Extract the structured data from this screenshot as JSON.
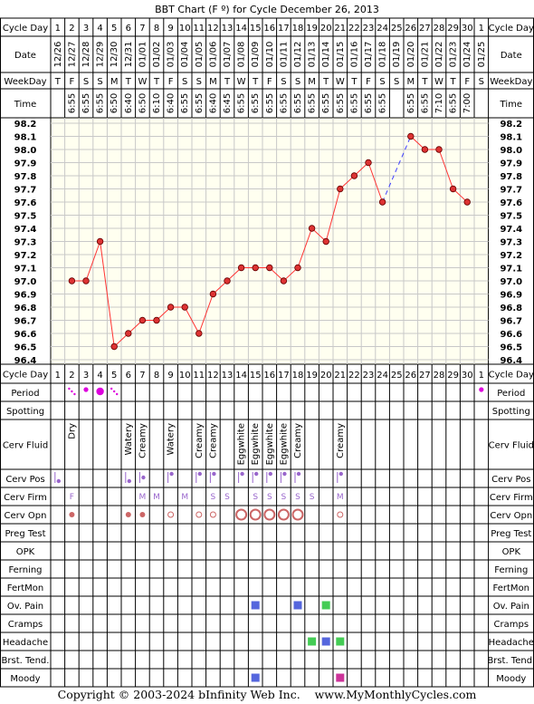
{
  "chart_data": {
    "type": "line",
    "title": "BBT Chart (F º) for Cycle December 26, 2013",
    "row_labels": {
      "cycle_day": "Cycle Day",
      "date": "Date",
      "weekday": "WeekDay",
      "time": "Time",
      "period": "Period",
      "spotting": "Spotting",
      "cerv_fluid": "Cerv Fluid",
      "cerv_pos": "Cerv Pos",
      "cerv_firm": "Cerv Firm",
      "cerv_opn": "Cerv Opn",
      "preg_test": "Preg Test",
      "opk": "OPK",
      "ferning": "Ferning",
      "fertmon": "FertMon",
      "ov_pain": "Ov. Pain",
      "cramps": "Cramps",
      "headache": "Headache",
      "brst_tend": "Brst. Tend.",
      "moody": "Moody"
    },
    "cycle_days": [
      "1",
      "2",
      "3",
      "4",
      "5",
      "6",
      "7",
      "8",
      "9",
      "10",
      "11",
      "12",
      "13",
      "14",
      "15",
      "16",
      "17",
      "18",
      "19",
      "20",
      "21",
      "22",
      "23",
      "24",
      "25",
      "26",
      "27",
      "28",
      "29",
      "30",
      "1"
    ],
    "dates": [
      "12/26",
      "12/27",
      "12/28",
      "12/29",
      "12/30",
      "12/31",
      "01/01",
      "01/02",
      "01/03",
      "01/04",
      "01/05",
      "01/06",
      "01/07",
      "01/08",
      "01/09",
      "01/10",
      "01/11",
      "01/12",
      "01/13",
      "01/14",
      "01/15",
      "01/16",
      "01/17",
      "01/18",
      "01/19",
      "01/20",
      "01/21",
      "01/22",
      "01/23",
      "01/24",
      "01/25"
    ],
    "weekdays": [
      "T",
      "F",
      "S",
      "S",
      "M",
      "T",
      "W",
      "T",
      "F",
      "S",
      "S",
      "M",
      "T",
      "W",
      "T",
      "F",
      "S",
      "S",
      "M",
      "T",
      "W",
      "T",
      "F",
      "S",
      "S",
      "M",
      "T",
      "W",
      "T",
      "F",
      "S"
    ],
    "times": [
      "",
      "6:55",
      "6:55",
      "6:55",
      "6:50",
      "6:40",
      "6:50",
      "6:10",
      "6:40",
      "6:55",
      "6:55",
      "6:40",
      "6:45",
      "6:55",
      "6:55",
      "6:55",
      "6:55",
      "6:55",
      "6:55",
      "6:55",
      "6:55",
      "6:55",
      "6:55",
      "6:55",
      "",
      "6:55",
      "6:55",
      "7:10",
      "6:55",
      "7:00",
      ""
    ],
    "y_ticks": [
      "98.2",
      "98.1",
      "98.0",
      "97.9",
      "97.8",
      "97.7",
      "97.6",
      "97.5",
      "97.4",
      "97.3",
      "97.2",
      "97.1",
      "97.0",
      "96.9",
      "96.8",
      "96.7",
      "96.6",
      "96.5",
      "96.4"
    ],
    "ylim": [
      96.4,
      98.2
    ],
    "grid": true,
    "temps": [
      null,
      97.0,
      97.0,
      97.3,
      96.5,
      96.6,
      96.7,
      96.7,
      96.8,
      96.8,
      96.6,
      96.9,
      97.0,
      97.1,
      97.1,
      97.1,
      97.0,
      97.1,
      97.4,
      97.3,
      97.7,
      97.8,
      97.9,
      97.6,
      null,
      98.1,
      98.0,
      98.0,
      97.7,
      97.6,
      null
    ],
    "dashed_bridge": [
      24,
      26
    ],
    "line_color": "#ff3333",
    "dash_color": "#4040ff",
    "period": {
      "2": "spot",
      "3": "dot",
      "4": "big",
      "5": "spot",
      "31": "dot"
    },
    "cerv_fluid": {
      "2": "Dry",
      "6": "Watery",
      "7": "Creamy",
      "9": "Watery",
      "11": "Creamy",
      "12": "Creamy",
      "14": "Eggwhite",
      "15": "Eggwhite",
      "16": "Eggwhite",
      "17": "Eggwhite",
      "18": "Creamy",
      "21": "Creamy"
    },
    "cerv_pos": {
      "1": "low",
      "6": "low",
      "7": "mid",
      "9": "high",
      "11": "high",
      "12": "high",
      "14": "high",
      "15": "high",
      "16": "high",
      "17": "high",
      "18": "high",
      "21": "high"
    },
    "cerv_firm": {
      "2": "F",
      "7": "M",
      "8": "M",
      "10": "M",
      "12": "S",
      "13": "S",
      "15": "S",
      "16": "S",
      "17": "S",
      "18": "S",
      "19": "S",
      "21": "M"
    },
    "cerv_opn": {
      "2": "closed",
      "6": "closed",
      "7": "closed",
      "9": "medium",
      "11": "medium",
      "12": "medium",
      "14": "open",
      "15": "open",
      "16": "open",
      "17": "open",
      "18": "open",
      "21": "medium"
    },
    "ov_pain": {
      "15": "blue",
      "18": "blue",
      "20": "green"
    },
    "headache": {
      "19": "green",
      "20": "blue",
      "21": "green"
    },
    "moody": {
      "15": "blue",
      "21": "magenta"
    },
    "colors": {
      "blue": "#5566dd",
      "green": "#44cc55",
      "magenta": "#cc3399",
      "period": "#dd00dd",
      "cervix": "#9966cc",
      "cervix_open": "#cc6666",
      "chart_bg": "#fffff0"
    }
  },
  "footer": {
    "copyright": "Copyright © 2003-2024 bInfinity Web Inc.",
    "site": "www.MyMonthlyCycles.com"
  }
}
